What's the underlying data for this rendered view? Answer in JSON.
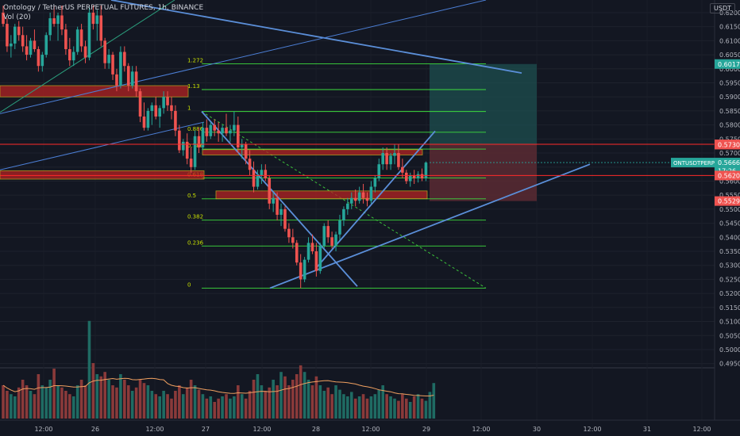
{
  "header": {
    "title": "Ontology / TetherUS PERPETUAL FUTURES, 1h, BINANCE",
    "indicator": "Vol (20)",
    "currency": "USDT"
  },
  "colors": {
    "background": "#131722",
    "up": "#26a69a",
    "down": "#ef5350",
    "fib": "#3ddc3d",
    "trend": "#5b8fd9",
    "red_line": "#ff2a2a",
    "target_zone": "#1d4f4f",
    "stop_zone": "#5a2a33",
    "zone_fill": "#b22222"
  },
  "chart_data": {
    "type": "candlestick",
    "title": "Ontology / TetherUS PERPETUAL FUTURES, 1h, BINANCE",
    "ylim": [
      0.4935,
      0.6245
    ],
    "y_ticks": [
      "0.6200",
      "0.6150",
      "0.6100",
      "0.6050",
      "0.6000",
      "0.5950",
      "0.5900",
      "0.5850",
      "0.5800",
      "0.5750",
      "0.5700",
      "0.5650",
      "0.5600",
      "0.5550",
      "0.5500",
      "0.5450",
      "0.5400",
      "0.5350",
      "0.5300",
      "0.5250",
      "0.5200",
      "0.5150",
      "0.5100",
      "0.5050",
      "0.5000",
      "0.4950"
    ],
    "x_ticks": [
      "12:00",
      "26",
      "12:00",
      "27",
      "12:00",
      "28",
      "12:00",
      "29",
      "12:00",
      "30",
      "12:00",
      "31",
      "12:00"
    ],
    "price_labels": [
      {
        "text": "0.6017",
        "value": 0.6017,
        "color": "#26a69a"
      },
      {
        "text": "0.5731",
        "value": 0.5731,
        "color": "#ef5350"
      },
      {
        "text": "0.5730",
        "value": 0.573,
        "color": "#ef5350"
      },
      {
        "text": "0.5666",
        "value": 0.5666,
        "color": "#26a69a"
      },
      {
        "text": "17:26",
        "value": 0.5637,
        "color": "#26a69a"
      },
      {
        "text": "0.5620",
        "value": 0.562,
        "color": "#ef5350"
      },
      {
        "text": "0.5529",
        "value": 0.5529,
        "color": "#ef5350"
      }
    ],
    "symbol_tag": "ONTUSDTPERP",
    "fib_levels": [
      {
        "label": "1.272",
        "value": 0.6018
      },
      {
        "label": "1.13",
        "value": 0.5926
      },
      {
        "label": "1",
        "value": 0.5848
      },
      {
        "label": "0.886",
        "value": 0.5774
      },
      {
        "label": "0.786",
        "value": 0.5714
      },
      {
        "label": "0.618",
        "value": 0.5611
      },
      {
        "label": "0.5",
        "value": 0.5537
      },
      {
        "label": "0.382",
        "value": 0.5461
      },
      {
        "label": "0.236",
        "value": 0.5369
      },
      {
        "label": "0",
        "value": 0.5219
      }
    ],
    "horizontal_lines": [
      0.5731,
      0.562
    ],
    "volume_ylim": [
      0,
      1
    ],
    "candles": [
      {
        "o": 0.62,
        "h": 0.6225,
        "l": 0.615,
        "c": 0.616
      },
      {
        "o": 0.616,
        "h": 0.618,
        "l": 0.606,
        "c": 0.608
      },
      {
        "o": 0.608,
        "h": 0.612,
        "l": 0.604,
        "c": 0.609
      },
      {
        "o": 0.609,
        "h": 0.616,
        "l": 0.607,
        "c": 0.615
      },
      {
        "o": 0.615,
        "h": 0.617,
        "l": 0.61,
        "c": 0.612
      },
      {
        "o": 0.612,
        "h": 0.615,
        "l": 0.606,
        "c": 0.608
      },
      {
        "o": 0.608,
        "h": 0.612,
        "l": 0.603,
        "c": 0.605
      },
      {
        "o": 0.605,
        "h": 0.611,
        "l": 0.604,
        "c": 0.61
      },
      {
        "o": 0.61,
        "h": 0.614,
        "l": 0.606,
        "c": 0.607
      },
      {
        "o": 0.607,
        "h": 0.608,
        "l": 0.599,
        "c": 0.601
      },
      {
        "o": 0.601,
        "h": 0.606,
        "l": 0.599,
        "c": 0.605
      },
      {
        "o": 0.605,
        "h": 0.613,
        "l": 0.604,
        "c": 0.612
      },
      {
        "o": 0.612,
        "h": 0.62,
        "l": 0.61,
        "c": 0.618
      },
      {
        "o": 0.618,
        "h": 0.6225,
        "l": 0.615,
        "c": 0.616
      },
      {
        "o": 0.616,
        "h": 0.62,
        "l": 0.61,
        "c": 0.619
      },
      {
        "o": 0.619,
        "h": 0.6225,
        "l": 0.612,
        "c": 0.614
      },
      {
        "o": 0.614,
        "h": 0.616,
        "l": 0.605,
        "c": 0.607
      },
      {
        "o": 0.607,
        "h": 0.611,
        "l": 0.601,
        "c": 0.603
      },
      {
        "o": 0.603,
        "h": 0.608,
        "l": 0.601,
        "c": 0.606
      },
      {
        "o": 0.606,
        "h": 0.615,
        "l": 0.605,
        "c": 0.614
      },
      {
        "o": 0.614,
        "h": 0.616,
        "l": 0.606,
        "c": 0.608
      },
      {
        "o": 0.608,
        "h": 0.61,
        "l": 0.602,
        "c": 0.604
      },
      {
        "o": 0.604,
        "h": 0.622,
        "l": 0.603,
        "c": 0.62
      },
      {
        "o": 0.62,
        "h": 0.6225,
        "l": 0.614,
        "c": 0.616
      },
      {
        "o": 0.616,
        "h": 0.621,
        "l": 0.61,
        "c": 0.619
      },
      {
        "o": 0.619,
        "h": 0.6225,
        "l": 0.608,
        "c": 0.61
      },
      {
        "o": 0.61,
        "h": 0.611,
        "l": 0.6,
        "c": 0.602
      },
      {
        "o": 0.602,
        "h": 0.607,
        "l": 0.6,
        "c": 0.605
      },
      {
        "o": 0.605,
        "h": 0.606,
        "l": 0.596,
        "c": 0.598
      },
      {
        "o": 0.598,
        "h": 0.6,
        "l": 0.592,
        "c": 0.594
      },
      {
        "o": 0.594,
        "h": 0.608,
        "l": 0.593,
        "c": 0.606
      },
      {
        "o": 0.606,
        "h": 0.608,
        "l": 0.599,
        "c": 0.601
      },
      {
        "o": 0.601,
        "h": 0.602,
        "l": 0.592,
        "c": 0.594
      },
      {
        "o": 0.594,
        "h": 0.601,
        "l": 0.593,
        "c": 0.599
      },
      {
        "o": 0.599,
        "h": 0.601,
        "l": 0.59,
        "c": 0.592
      },
      {
        "o": 0.592,
        "h": 0.593,
        "l": 0.581,
        "c": 0.583
      },
      {
        "o": 0.583,
        "h": 0.588,
        "l": 0.578,
        "c": 0.579
      },
      {
        "o": 0.579,
        "h": 0.586,
        "l": 0.578,
        "c": 0.585
      },
      {
        "o": 0.585,
        "h": 0.588,
        "l": 0.58,
        "c": 0.587
      },
      {
        "o": 0.587,
        "h": 0.59,
        "l": 0.582,
        "c": 0.583
      },
      {
        "o": 0.583,
        "h": 0.587,
        "l": 0.579,
        "c": 0.586
      },
      {
        "o": 0.586,
        "h": 0.592,
        "l": 0.584,
        "c": 0.59
      },
      {
        "o": 0.59,
        "h": 0.592,
        "l": 0.585,
        "c": 0.587
      },
      {
        "o": 0.587,
        "h": 0.59,
        "l": 0.582,
        "c": 0.585
      },
      {
        "o": 0.585,
        "h": 0.587,
        "l": 0.576,
        "c": 0.578
      },
      {
        "o": 0.578,
        "h": 0.58,
        "l": 0.57,
        "c": 0.571
      },
      {
        "o": 0.571,
        "h": 0.575,
        "l": 0.569,
        "c": 0.574
      },
      {
        "o": 0.574,
        "h": 0.577,
        "l": 0.566,
        "c": 0.568
      },
      {
        "o": 0.568,
        "h": 0.572,
        "l": 0.563,
        "c": 0.565
      },
      {
        "o": 0.565,
        "h": 0.578,
        "l": 0.564,
        "c": 0.576
      },
      {
        "o": 0.576,
        "h": 0.579,
        "l": 0.57,
        "c": 0.572
      },
      {
        "o": 0.572,
        "h": 0.581,
        "l": 0.571,
        "c": 0.579
      },
      {
        "o": 0.579,
        "h": 0.582,
        "l": 0.574,
        "c": 0.576
      },
      {
        "o": 0.576,
        "h": 0.581,
        "l": 0.575,
        "c": 0.58
      },
      {
        "o": 0.58,
        "h": 0.582,
        "l": 0.576,
        "c": 0.578
      },
      {
        "o": 0.578,
        "h": 0.581,
        "l": 0.574,
        "c": 0.577
      },
      {
        "o": 0.577,
        "h": 0.58,
        "l": 0.574,
        "c": 0.579
      },
      {
        "o": 0.579,
        "h": 0.584,
        "l": 0.576,
        "c": 0.577
      },
      {
        "o": 0.577,
        "h": 0.58,
        "l": 0.574,
        "c": 0.578
      },
      {
        "o": 0.578,
        "h": 0.5848,
        "l": 0.576,
        "c": 0.58
      },
      {
        "o": 0.58,
        "h": 0.583,
        "l": 0.57,
        "c": 0.572
      },
      {
        "o": 0.572,
        "h": 0.575,
        "l": 0.568,
        "c": 0.573
      },
      {
        "o": 0.573,
        "h": 0.574,
        "l": 0.566,
        "c": 0.568
      },
      {
        "o": 0.568,
        "h": 0.571,
        "l": 0.562,
        "c": 0.564
      },
      {
        "o": 0.564,
        "h": 0.567,
        "l": 0.556,
        "c": 0.558
      },
      {
        "o": 0.558,
        "h": 0.564,
        "l": 0.557,
        "c": 0.562
      },
      {
        "o": 0.562,
        "h": 0.566,
        "l": 0.559,
        "c": 0.564
      },
      {
        "o": 0.564,
        "h": 0.566,
        "l": 0.56,
        "c": 0.561
      },
      {
        "o": 0.561,
        "h": 0.562,
        "l": 0.55,
        "c": 0.552
      },
      {
        "o": 0.552,
        "h": 0.556,
        "l": 0.549,
        "c": 0.554
      },
      {
        "o": 0.554,
        "h": 0.556,
        "l": 0.546,
        "c": 0.548
      },
      {
        "o": 0.548,
        "h": 0.552,
        "l": 0.544,
        "c": 0.55
      },
      {
        "o": 0.55,
        "h": 0.551,
        "l": 0.542,
        "c": 0.543
      },
      {
        "o": 0.543,
        "h": 0.545,
        "l": 0.538,
        "c": 0.54
      },
      {
        "o": 0.54,
        "h": 0.543,
        "l": 0.536,
        "c": 0.538
      },
      {
        "o": 0.538,
        "h": 0.539,
        "l": 0.53,
        "c": 0.531
      },
      {
        "o": 0.531,
        "h": 0.534,
        "l": 0.5219,
        "c": 0.525
      },
      {
        "o": 0.525,
        "h": 0.533,
        "l": 0.524,
        "c": 0.532
      },
      {
        "o": 0.532,
        "h": 0.54,
        "l": 0.531,
        "c": 0.538
      },
      {
        "o": 0.538,
        "h": 0.541,
        "l": 0.534,
        "c": 0.535
      },
      {
        "o": 0.535,
        "h": 0.538,
        "l": 0.526,
        "c": 0.528
      },
      {
        "o": 0.528,
        "h": 0.538,
        "l": 0.527,
        "c": 0.537
      },
      {
        "o": 0.537,
        "h": 0.545,
        "l": 0.536,
        "c": 0.544
      },
      {
        "o": 0.544,
        "h": 0.546,
        "l": 0.538,
        "c": 0.54
      },
      {
        "o": 0.54,
        "h": 0.542,
        "l": 0.536,
        "c": 0.537
      },
      {
        "o": 0.537,
        "h": 0.542,
        "l": 0.535,
        "c": 0.541
      },
      {
        "o": 0.541,
        "h": 0.548,
        "l": 0.539,
        "c": 0.546
      },
      {
        "o": 0.546,
        "h": 0.551,
        "l": 0.544,
        "c": 0.55
      },
      {
        "o": 0.55,
        "h": 0.554,
        "l": 0.548,
        "c": 0.552
      },
      {
        "o": 0.552,
        "h": 0.556,
        "l": 0.55,
        "c": 0.554
      },
      {
        "o": 0.554,
        "h": 0.557,
        "l": 0.551,
        "c": 0.553
      },
      {
        "o": 0.553,
        "h": 0.558,
        "l": 0.552,
        "c": 0.556
      },
      {
        "o": 0.556,
        "h": 0.559,
        "l": 0.552,
        "c": 0.554
      },
      {
        "o": 0.554,
        "h": 0.556,
        "l": 0.551,
        "c": 0.553
      },
      {
        "o": 0.553,
        "h": 0.56,
        "l": 0.552,
        "c": 0.558
      },
      {
        "o": 0.558,
        "h": 0.562,
        "l": 0.556,
        "c": 0.561
      },
      {
        "o": 0.561,
        "h": 0.568,
        "l": 0.56,
        "c": 0.566
      },
      {
        "o": 0.566,
        "h": 0.572,
        "l": 0.564,
        "c": 0.57
      },
      {
        "o": 0.57,
        "h": 0.572,
        "l": 0.564,
        "c": 0.566
      },
      {
        "o": 0.566,
        "h": 0.57,
        "l": 0.564,
        "c": 0.569
      },
      {
        "o": 0.569,
        "h": 0.573,
        "l": 0.566,
        "c": 0.57
      },
      {
        "o": 0.57,
        "h": 0.5731,
        "l": 0.564,
        "c": 0.565
      },
      {
        "o": 0.565,
        "h": 0.568,
        "l": 0.561,
        "c": 0.563
      },
      {
        "o": 0.563,
        "h": 0.564,
        "l": 0.559,
        "c": 0.56
      },
      {
        "o": 0.56,
        "h": 0.563,
        "l": 0.558,
        "c": 0.562
      },
      {
        "o": 0.562,
        "h": 0.564,
        "l": 0.559,
        "c": 0.561
      },
      {
        "o": 0.561,
        "h": 0.5635,
        "l": 0.5595,
        "c": 0.5625
      },
      {
        "o": 0.5625,
        "h": 0.5645,
        "l": 0.56,
        "c": 0.561
      },
      {
        "o": 0.561,
        "h": 0.567,
        "l": 0.56,
        "c": 0.5666
      }
    ],
    "volume": [
      0.3,
      0.25,
      0.22,
      0.2,
      0.28,
      0.35,
      0.3,
      0.25,
      0.22,
      0.4,
      0.3,
      0.28,
      0.35,
      0.45,
      0.3,
      0.28,
      0.25,
      0.22,
      0.2,
      0.3,
      0.35,
      0.3,
      0.88,
      0.5,
      0.4,
      0.38,
      0.42,
      0.35,
      0.3,
      0.28,
      0.4,
      0.35,
      0.3,
      0.25,
      0.28,
      0.35,
      0.32,
      0.3,
      0.25,
      0.22,
      0.2,
      0.25,
      0.22,
      0.18,
      0.25,
      0.3,
      0.22,
      0.28,
      0.35,
      0.3,
      0.26,
      0.22,
      0.18,
      0.2,
      0.15,
      0.18,
      0.2,
      0.22,
      0.18,
      0.2,
      0.3,
      0.22,
      0.18,
      0.25,
      0.35,
      0.4,
      0.3,
      0.25,
      0.28,
      0.35,
      0.3,
      0.42,
      0.38,
      0.3,
      0.35,
      0.4,
      0.48,
      0.42,
      0.35,
      0.3,
      0.38,
      0.3,
      0.25,
      0.28,
      0.22,
      0.3,
      0.26,
      0.22,
      0.2,
      0.24,
      0.18,
      0.2,
      0.22,
      0.18,
      0.2,
      0.22,
      0.26,
      0.3,
      0.22,
      0.2,
      0.18,
      0.16,
      0.22,
      0.18,
      0.15,
      0.2,
      0.22,
      0.18,
      0.16,
      0.24,
      0.32
    ]
  }
}
